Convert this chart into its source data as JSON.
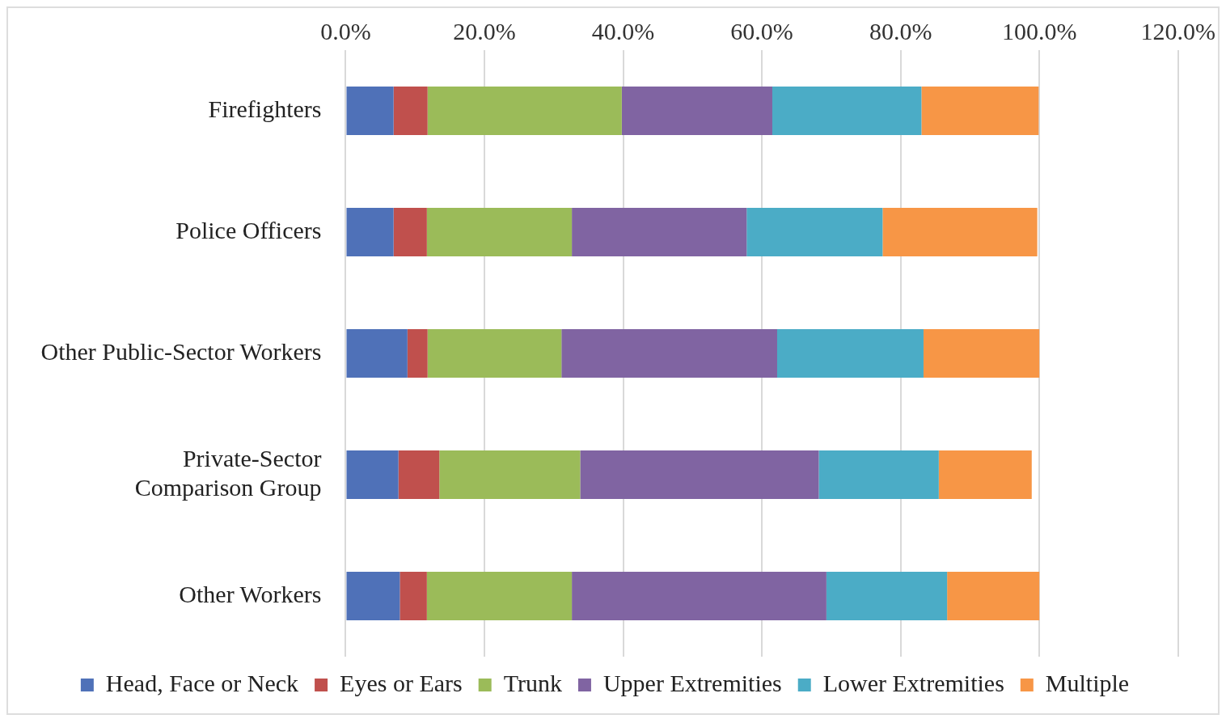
{
  "chart_data": {
    "type": "bar",
    "orientation": "horizontal",
    "stacked": true,
    "categories": [
      "Firefighters",
      "Police Officers",
      "Other Public-Sector Workers",
      "Private-Sector Comparison Group",
      "Other Workers"
    ],
    "series": [
      {
        "name": "Head, Face or Neck",
        "color": "#4f71b8",
        "values": [
          6.9,
          6.9,
          8.9,
          7.6,
          7.8
        ]
      },
      {
        "name": "Eyes or Ears",
        "color": "#c0504d",
        "values": [
          4.9,
          4.8,
          2.9,
          5.9,
          3.9
        ]
      },
      {
        "name": "Trunk",
        "color": "#9bbb59",
        "values": [
          28.0,
          20.9,
          19.3,
          20.3,
          20.9
        ]
      },
      {
        "name": "Upper Extremities",
        "color": "#8064a2",
        "values": [
          21.7,
          25.2,
          31.1,
          34.4,
          36.7
        ]
      },
      {
        "name": "Lower Extremities",
        "color": "#4bacc6",
        "values": [
          21.5,
          19.6,
          21.1,
          17.3,
          17.4
        ]
      },
      {
        "name": "Multiple",
        "color": "#f79646",
        "values": [
          16.9,
          22.3,
          16.7,
          13.4,
          13.3
        ]
      }
    ],
    "xlim": [
      0,
      120
    ],
    "xticks": [
      {
        "value": 0,
        "label": "0.0%"
      },
      {
        "value": 20,
        "label": "20.0%"
      },
      {
        "value": 40,
        "label": "40.0%"
      },
      {
        "value": 60,
        "label": "60.0%"
      },
      {
        "value": 80,
        "label": "80.0%"
      },
      {
        "value": 100,
        "label": "100.0%"
      },
      {
        "value": 120,
        "label": "120.0%"
      }
    ],
    "grid": "x",
    "legend": "bottom"
  }
}
